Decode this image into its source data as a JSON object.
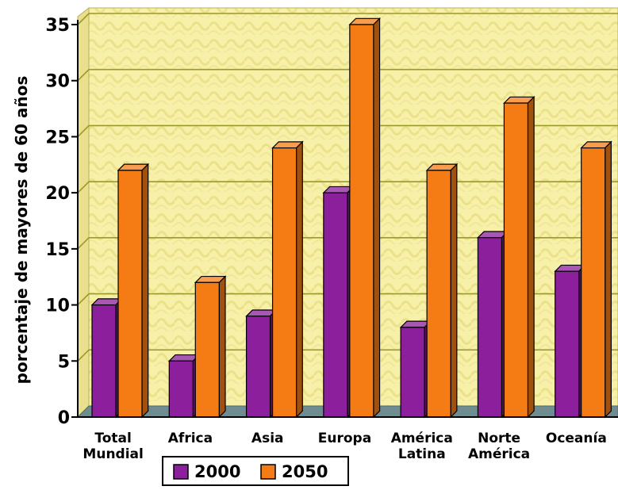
{
  "chart_data": {
    "type": "bar",
    "title": "",
    "xlabel": "",
    "ylabel": "porcentaje de mayores de 60 años",
    "ylim": [
      0,
      35
    ],
    "yticks": [
      0,
      5,
      10,
      15,
      20,
      25,
      30,
      35
    ],
    "grid": true,
    "legend_position": "bottom-center",
    "categories": [
      [
        "Total",
        "Mundial"
      ],
      [
        "Africa"
      ],
      [
        "Asia"
      ],
      [
        "Europa"
      ],
      [
        "América",
        "Latina"
      ],
      [
        "Norte",
        "América"
      ],
      [
        "Oceanía"
      ]
    ],
    "series": [
      {
        "name": "2000",
        "color": "#8b1f9c",
        "values": [
          10,
          5,
          9,
          20,
          8,
          16,
          13
        ]
      },
      {
        "name": "2050",
        "color": "#f57c14",
        "values": [
          22,
          12,
          24,
          35,
          22,
          28,
          24
        ]
      }
    ],
    "colors": {
      "wall": "#f7f0a8",
      "grid": "#9a9a2a",
      "floor": "#6f8d90",
      "axis_text": "#000000"
    }
  }
}
